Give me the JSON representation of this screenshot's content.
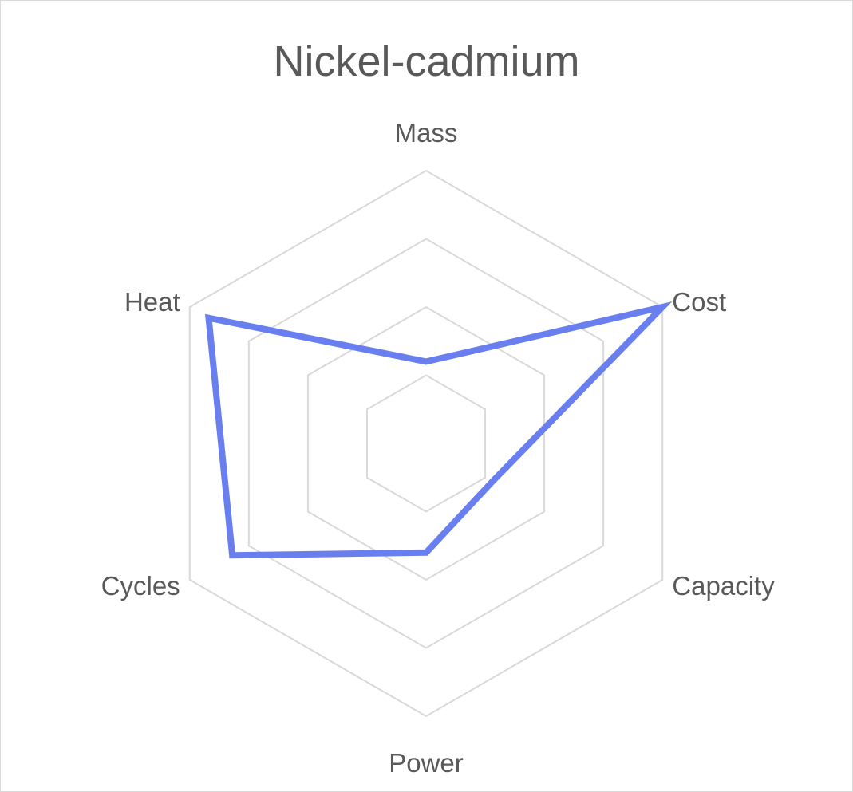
{
  "chart_data": {
    "type": "radar",
    "title": "Nickel-cadmium",
    "categories": [
      "Mass",
      "Cost",
      "Capacity",
      "Power",
      "Cycles",
      "Heat"
    ],
    "series": [
      {
        "values": [
          1.5,
          5,
          1.4,
          2,
          4.1,
          4.6
        ]
      }
    ],
    "rlim": [
      0,
      5
    ],
    "grid_rings": 4,
    "legend": "none",
    "colors": {
      "series": "#6a7fef",
      "grid": "#d9d9d9",
      "text": "#595959"
    }
  }
}
